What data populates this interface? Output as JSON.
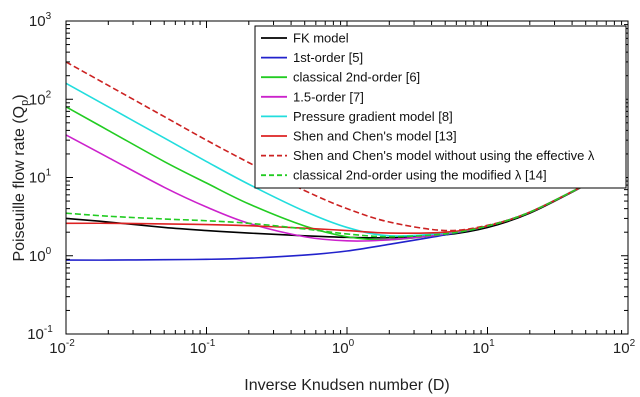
{
  "chart_data": {
    "type": "line",
    "xlabel": "Inverse Knudsen number (D)",
    "ylabel": "Poiseuille flow rate (Q",
    "ylabel_sub": "p",
    "ylabel_tail": ")",
    "xscale": "log",
    "yscale": "log",
    "xlim": [
      0.01,
      100
    ],
    "ylim": [
      0.1,
      1000
    ],
    "grid": false,
    "legend_position": "top-right",
    "x_ticks": [
      {
        "value": 0.01,
        "base": "10",
        "exp": "-2"
      },
      {
        "value": 0.1,
        "base": "10",
        "exp": "-1"
      },
      {
        "value": 1,
        "base": "10",
        "exp": "0"
      },
      {
        "value": 10,
        "base": "10",
        "exp": "1"
      },
      {
        "value": 100,
        "base": "10",
        "exp": "2"
      }
    ],
    "y_ticks": [
      {
        "value": 0.1,
        "base": "10",
        "exp": "-1"
      },
      {
        "value": 1,
        "base": "10",
        "exp": "0"
      },
      {
        "value": 10,
        "base": "10",
        "exp": "1"
      },
      {
        "value": 100,
        "base": "10",
        "exp": "2"
      },
      {
        "value": 1000,
        "base": "10",
        "exp": "3"
      }
    ],
    "series": [
      {
        "name": "FK model",
        "color": "#000000",
        "dash": "solid",
        "x": [
          0.01,
          0.02,
          0.05,
          0.1,
          0.2,
          0.5,
          1,
          2,
          5,
          10,
          20,
          50,
          80
        ],
        "y": [
          3.0,
          2.7,
          2.3,
          2.1,
          1.95,
          1.8,
          1.72,
          1.7,
          1.85,
          2.3,
          3.5,
          8.0,
          12.5
        ]
      },
      {
        "name": "1st-order [5]",
        "color": "#2222cc",
        "dash": "solid",
        "x": [
          0.01,
          0.02,
          0.05,
          0.1,
          0.2,
          0.5,
          1,
          2,
          5,
          10,
          20,
          50,
          80
        ],
        "y": [
          0.88,
          0.88,
          0.89,
          0.9,
          0.93,
          1.02,
          1.15,
          1.4,
          1.85,
          2.4,
          3.6,
          8.1,
          12.5
        ]
      },
      {
        "name": "classical 2nd-order [6]",
        "color": "#22cc22",
        "dash": "solid",
        "x": [
          0.01,
          0.02,
          0.05,
          0.1,
          0.2,
          0.5,
          1,
          2,
          5,
          10,
          20,
          50,
          80
        ],
        "y": [
          80,
          40,
          16,
          8.5,
          4.6,
          2.4,
          1.75,
          1.6,
          1.9,
          2.4,
          3.6,
          8.1,
          12.5
        ]
      },
      {
        "name": "1.5-order [7]",
        "color": "#cc22cc",
        "dash": "solid",
        "x": [
          0.01,
          0.02,
          0.05,
          0.1,
          0.2,
          0.5,
          1,
          2,
          5,
          10,
          20,
          50,
          80
        ],
        "y": [
          35,
          18,
          7.5,
          4.2,
          2.6,
          1.75,
          1.55,
          1.6,
          1.9,
          2.4,
          3.6,
          8.1,
          12.5
        ]
      },
      {
        "name": "Pressure gradient model [8]",
        "color": "#22dddd",
        "dash": "solid",
        "x": [
          0.01,
          0.02,
          0.05,
          0.1,
          0.2,
          0.5,
          1,
          2,
          5,
          10,
          20,
          50,
          80
        ],
        "y": [
          160,
          80,
          32,
          16,
          8.2,
          3.7,
          2.3,
          1.8,
          1.95,
          2.4,
          3.6,
          8.1,
          12.5
        ]
      },
      {
        "name": "Shen and Chen's model [13]",
        "color": "#dd2222",
        "dash": "solid",
        "x": [
          0.01,
          0.02,
          0.05,
          0.1,
          0.2,
          0.5,
          1,
          2,
          5,
          10,
          20,
          50,
          80
        ],
        "y": [
          2.6,
          2.6,
          2.55,
          2.5,
          2.42,
          2.25,
          2.1,
          1.95,
          2.0,
          2.4,
          3.6,
          8.1,
          12.5
        ]
      },
      {
        "name": "Shen and Chen's model without using the effective λ",
        "color": "#cc2222",
        "dash": "dashed",
        "x": [
          0.01,
          0.02,
          0.05,
          0.1,
          0.2,
          0.5,
          1,
          2,
          5,
          10,
          20,
          50,
          80
        ],
        "y": [
          300,
          150,
          60,
          30,
          15.5,
          6.8,
          4.0,
          2.7,
          2.1,
          2.45,
          3.6,
          8.1,
          12.5
        ]
      },
      {
        "name": "classical 2nd-order using the modified λ [14]",
        "color": "#22cc22",
        "dash": "dashed",
        "x": [
          0.01,
          0.02,
          0.05,
          0.1,
          0.2,
          0.5,
          1,
          2,
          5,
          10,
          20,
          50,
          80
        ],
        "y": [
          3.5,
          3.2,
          2.95,
          2.8,
          2.6,
          2.2,
          1.9,
          1.75,
          1.9,
          2.4,
          3.6,
          8.1,
          12.5
        ]
      }
    ]
  }
}
